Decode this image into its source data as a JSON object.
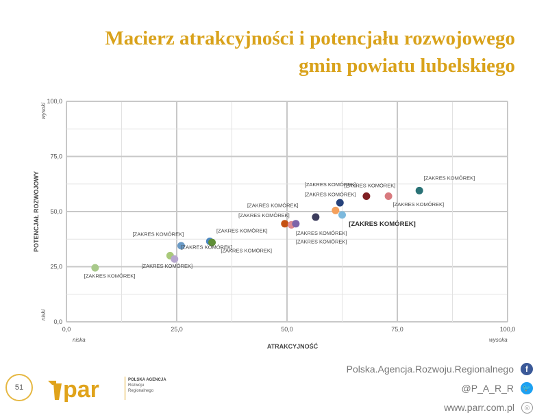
{
  "title": {
    "line1": "Macierz atrakcyjności i potencjału rozwojowego",
    "line2": "gmin powiatu lubelskiego"
  },
  "chart_data": {
    "type": "scatter",
    "xlabel": "ATRAKCYJNOŚĆ",
    "ylabel": "POTENCJAŁ ROZWOJOWY",
    "xlim": [
      0,
      100
    ],
    "ylim": [
      0,
      100
    ],
    "x_ticks": [
      "0,0",
      "25,0",
      "50,0",
      "75,0",
      "100,0"
    ],
    "y_ticks": [
      "0,0",
      "25,0",
      "50,0",
      "75,0",
      "100,0"
    ],
    "x_low": "niska",
    "x_high": "wysoka",
    "y_low": "niski",
    "y_high": "wysoki",
    "grid": true,
    "points": [
      {
        "x": 6.5,
        "y": 24.5,
        "color": "#a8c98a",
        "label": "[ZAKRES KOMÓREK]",
        "lx": 4,
        "ly": 20,
        "bold": false
      },
      {
        "x": 23.5,
        "y": 30.0,
        "color": "#a9c97a",
        "label": "[ZAKRES KOMÓREK]",
        "lx": 26,
        "ly": 33,
        "bold": false
      },
      {
        "x": 24.5,
        "y": 28.5,
        "color": "#b7a7cf",
        "label": "[ZAKRES KOMÓREK]",
        "lx": 17,
        "ly": 24.5,
        "bold": false
      },
      {
        "x": 26.0,
        "y": 34.5,
        "color": "#6a9ac6",
        "label": "[ZAKRES KOMÓREK]",
        "lx": 15,
        "ly": 39,
        "bold": false
      },
      {
        "x": 32.5,
        "y": 36.5,
        "color": "#4a86c0",
        "label": "[ZAKRES KOMÓREK]",
        "lx": 34,
        "ly": 40.5,
        "bold": false
      },
      {
        "x": 33.0,
        "y": 36.0,
        "color": "#5f8e36",
        "label": "[ZAKRES KOMÓREK]",
        "lx": 35,
        "ly": 31.5,
        "bold": false
      },
      {
        "x": 49.5,
        "y": 44.5,
        "color": "#c45011",
        "label": "[ZAKRES KOMÓREK]",
        "lx": 39,
        "ly": 47.5,
        "bold": false
      },
      {
        "x": 51.0,
        "y": 44.0,
        "color": "#e0898f",
        "label": "[ZAKRES KOMÓREK]",
        "lx": 52,
        "ly": 39.5,
        "bold": false
      },
      {
        "x": 52.0,
        "y": 44.5,
        "color": "#7d64a9",
        "label": "[ZAKRES KOMÓREK]",
        "lx": 41,
        "ly": 52,
        "bold": false
      },
      {
        "x": 56.5,
        "y": 47.5,
        "color": "#3c3c5c",
        "label": "[ZAKRES KOMÓREK]",
        "lx": 52,
        "ly": 35.5,
        "bold": false
      },
      {
        "x": 61.0,
        "y": 50.5,
        "color": "#f4a05c",
        "label": "[ZAKRES KOMÓREK]",
        "lx": 54,
        "ly": 57,
        "bold": false
      },
      {
        "x": 62.0,
        "y": 54.0,
        "color": "#26427b",
        "label": "[ZAKRES KOMÓREK]",
        "lx": 54,
        "ly": 61.5,
        "bold": false
      },
      {
        "x": 62.5,
        "y": 48.5,
        "color": "#7db9dd",
        "label": "[ZAKRES KOMÓREK]",
        "lx": 64,
        "ly": 43.5,
        "bold": true
      },
      {
        "x": 68.0,
        "y": 57.0,
        "color": "#7f1f23",
        "label": "[ZAKRES KOMÓREK]",
        "lx": 63,
        "ly": 61,
        "bold": false
      },
      {
        "x": 73.0,
        "y": 57.0,
        "color": "#d87a7e",
        "label": "[ZAKRES KOMÓREK]",
        "lx": 74,
        "ly": 52.5,
        "bold": false
      },
      {
        "x": 80.0,
        "y": 59.5,
        "color": "#2a7276",
        "label": "[ZAKRES KOMÓREK]",
        "lx": 81,
        "ly": 64.5,
        "bold": false
      }
    ]
  },
  "footer": {
    "page_number": "51",
    "logo_text": "par",
    "agency_line1": "POLSKA AGENCJA",
    "agency_line2": "Rozwoju",
    "agency_line3": "Regionalnego",
    "facebook": "Polska.Agencja.Rozwoju.Regionalnego",
    "twitter": "@P_A_R_R",
    "website": "www.parr.com.pl"
  }
}
